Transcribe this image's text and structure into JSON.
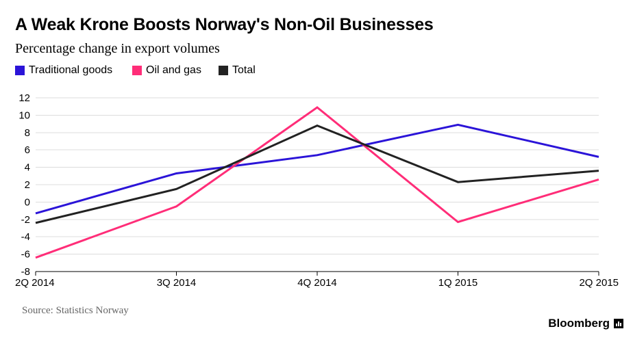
{
  "chart_data": {
    "type": "line",
    "title": "A Weak Krone Boosts Norway's Non-Oil Businesses",
    "subtitle": "Percentage change in export volumes",
    "categories": [
      "2Q 2014",
      "3Q 2014",
      "4Q 2014",
      "1Q 2015",
      "2Q 2015"
    ],
    "series": [
      {
        "name": "Traditional goods",
        "color": "#2b14d8",
        "values": [
          -1.3,
          3.3,
          5.4,
          8.9,
          5.2
        ]
      },
      {
        "name": "Oil and gas",
        "color": "#ff2d78",
        "values": [
          -6.4,
          -0.5,
          10.9,
          -2.3,
          2.6
        ]
      },
      {
        "name": "Total",
        "color": "#222222",
        "values": [
          -2.4,
          1.5,
          8.8,
          2.3,
          3.6
        ]
      }
    ],
    "yticks": [
      "12",
      "10",
      "8",
      "6",
      "4",
      "2",
      "0",
      "-2",
      "-4",
      "-6",
      "-8"
    ],
    "ylim": [
      -8,
      12
    ],
    "xlabel": "",
    "ylabel": "",
    "grid": true,
    "legend": "top-left"
  },
  "source": "Source: Statistics Norway",
  "brand": "Bloomberg"
}
